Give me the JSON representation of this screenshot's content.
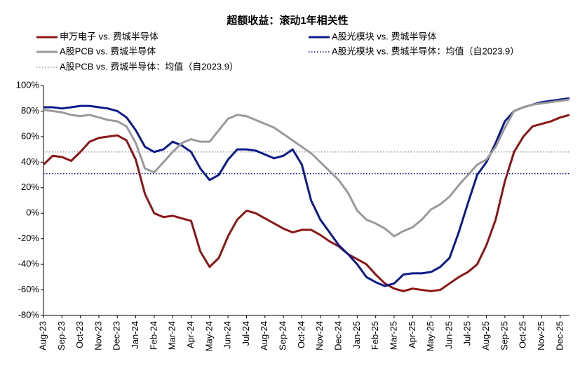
{
  "chart_data": {
    "type": "line",
    "title": "超额收益：滚动1年相关性",
    "categories": [
      "Aug-23",
      null,
      "Sep-23",
      null,
      "Oct-23",
      null,
      "Nov-23",
      null,
      "Dec-23",
      null,
      "Jan-24",
      null,
      "Feb-24",
      null,
      "Mar-24",
      null,
      "Apr-24",
      null,
      "May-24",
      null,
      "Jun-24",
      null,
      "Jul-24",
      null,
      "Aug-24",
      null,
      "Sep-24",
      null,
      "Oct-24",
      null,
      "Nov-24",
      null,
      "Dec-24",
      null,
      "Jan-25",
      null,
      "Feb-25",
      null,
      "Mar-25",
      null,
      "Apr-25",
      null,
      "May-25",
      null,
      "Jun-25",
      null,
      "Jul-25",
      null,
      "Aug-25",
      null,
      "Sep-25",
      null,
      "Oct-25",
      null,
      "Nov-25",
      null,
      "Dec-25",
      null
    ],
    "series": [
      {
        "name": "申万电子 vs. 费城半导体",
        "color": "#8b1616",
        "values": [
          38,
          45,
          44,
          41,
          48,
          56,
          59,
          60,
          61,
          57,
          42,
          15,
          0,
          -3,
          -2,
          -4,
          -6,
          -30,
          -42,
          -35,
          -18,
          -5,
          2,
          0,
          -4,
          -8,
          -12,
          -15,
          -13,
          -13,
          -17,
          -22,
          -26,
          -32,
          -36,
          -40,
          -48,
          -55,
          -59,
          -61,
          -59,
          -60,
          -61,
          -60,
          -55,
          -50,
          -46,
          -40,
          -25,
          -5,
          25,
          48,
          60,
          68,
          70,
          72,
          75,
          77
        ]
      },
      {
        "name": "A股光模块 vs. 费城半导体",
        "color": "#0c1a8a",
        "values": [
          83,
          83,
          82,
          83,
          84,
          84,
          83,
          82,
          80,
          75,
          65,
          52,
          48,
          50,
          56,
          53,
          48,
          35,
          26,
          30,
          42,
          50,
          50,
          49,
          46,
          43,
          45,
          50,
          38,
          10,
          -5,
          -15,
          -25,
          -32,
          -40,
          -50,
          -54,
          -57,
          -55,
          -48,
          -47,
          -47,
          -46,
          -42,
          -35,
          -15,
          8,
          30,
          40,
          55,
          72,
          80,
          83,
          85,
          87,
          88,
          89,
          90
        ]
      },
      {
        "name": "A股PCB vs. 费城半导体",
        "color": "#9a9a9a",
        "values": [
          81,
          80,
          79,
          77,
          76,
          77,
          75,
          73,
          72,
          68,
          55,
          35,
          32,
          40,
          48,
          55,
          58,
          56,
          56,
          65,
          74,
          77,
          76,
          73,
          70,
          67,
          62,
          57,
          52,
          47,
          40,
          33,
          26,
          16,
          2,
          -5,
          -8,
          -12,
          -18,
          -14,
          -11,
          -5,
          3,
          7,
          13,
          22,
          30,
          38,
          42,
          52,
          67,
          80,
          83,
          85,
          86,
          87,
          88,
          89
        ]
      }
    ],
    "mean_lines": [
      {
        "name": "A股光模块 vs. 费城半导体：均值（自2023.9）",
        "color": "#0c1a8a",
        "value": 31
      },
      {
        "name": "A股PCB vs. 费城半导体：均值（自2023.9）",
        "color": "#9a9a9a",
        "value": 48
      }
    ],
    "ylim": [
      -80,
      100
    ],
    "yticks": [
      {
        "value": -80,
        "label": "-80%"
      },
      {
        "value": -60,
        "label": "-60%"
      },
      {
        "value": -40,
        "label": "-40%"
      },
      {
        "value": -20,
        "label": "-20%"
      },
      {
        "value": 0,
        "label": "0%"
      },
      {
        "value": 20,
        "label": "20%"
      },
      {
        "value": 40,
        "label": "40%"
      },
      {
        "value": 60,
        "label": "60%"
      },
      {
        "value": 80,
        "label": "80%"
      },
      {
        "value": 100,
        "label": "100%"
      }
    ],
    "grid": false
  }
}
